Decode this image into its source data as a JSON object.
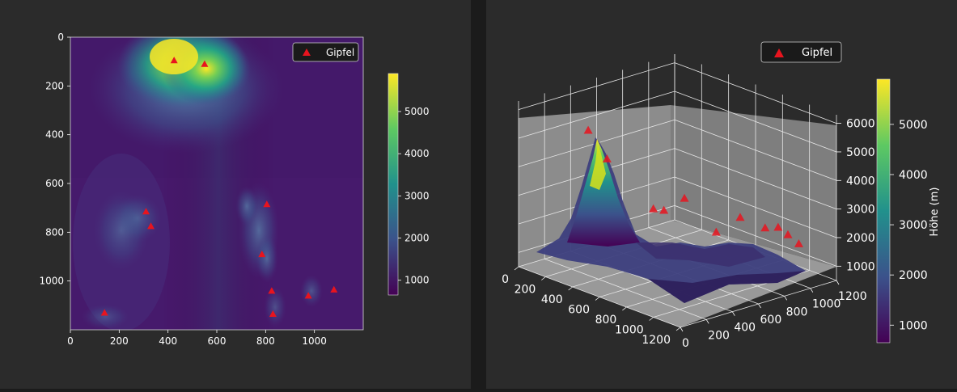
{
  "colors": {
    "background": "#2b2b2b",
    "peak_marker": "#e8141e",
    "text": "#ffffff",
    "colormap": "viridis"
  },
  "chart_data": [
    {
      "type": "heatmap",
      "title": "",
      "xlabel": "",
      "ylabel": "",
      "xlim": [
        0,
        1200
      ],
      "ylim": [
        1200,
        0
      ],
      "x_ticks": [
        "0",
        "200",
        "400",
        "600",
        "800",
        "1000"
      ],
      "y_ticks": [
        "0",
        "200",
        "400",
        "600",
        "800",
        "1000"
      ],
      "colorbar": {
        "label": "",
        "range": [
          650,
          5900
        ],
        "ticks": [
          "1000",
          "2000",
          "3000",
          "4000",
          "5000"
        ]
      },
      "legend": {
        "label": "Gipfel",
        "position": "top-right"
      },
      "series": [
        {
          "name": "Gipfel",
          "points": [
            {
              "x": 425,
              "y": 95
            },
            {
              "x": 550,
              "y": 110
            },
            {
              "x": 310,
              "y": 715
            },
            {
              "x": 330,
              "y": 775
            },
            {
              "x": 805,
              "y": 685
            },
            {
              "x": 785,
              "y": 890
            },
            {
              "x": 825,
              "y": 1040
            },
            {
              "x": 830,
              "y": 1135
            },
            {
              "x": 975,
              "y": 1060
            },
            {
              "x": 1080,
              "y": 1035
            },
            {
              "x": 140,
              "y": 1130
            }
          ]
        }
      ]
    },
    {
      "type": "surface",
      "title": "",
      "x_ticks": [
        "0",
        "200",
        "400",
        "600",
        "800",
        "1000",
        "1200"
      ],
      "y_ticks": [
        "0",
        "200",
        "400",
        "600",
        "800",
        "1000",
        "1200"
      ],
      "z_ticks": [
        "1000",
        "2000",
        "3000",
        "4000",
        "5000",
        "6000"
      ],
      "zlim": [
        500,
        6300
      ],
      "colorbar": {
        "label": "Höhe (m)",
        "range": [
          650,
          5900
        ],
        "ticks": [
          "1000",
          "2000",
          "3000",
          "4000",
          "5000"
        ]
      },
      "legend": {
        "label": "Gipfel",
        "position": "top-center"
      },
      "peaks": [
        {
          "x": 425,
          "y": 95,
          "z": 5900
        },
        {
          "x": 550,
          "y": 110,
          "z": 5100
        },
        {
          "x": 310,
          "y": 715,
          "z": 2100
        },
        {
          "x": 330,
          "y": 775,
          "z": 2000
        },
        {
          "x": 805,
          "y": 685,
          "z": 2200
        },
        {
          "x": 785,
          "y": 890,
          "z": 2400
        },
        {
          "x": 825,
          "y": 1040,
          "z": 1900
        },
        {
          "x": 830,
          "y": 1135,
          "z": 1800
        },
        {
          "x": 975,
          "y": 1060,
          "z": 1900
        },
        {
          "x": 1080,
          "y": 1035,
          "z": 1800
        },
        {
          "x": 140,
          "y": 1130,
          "z": 1600
        }
      ]
    }
  ]
}
